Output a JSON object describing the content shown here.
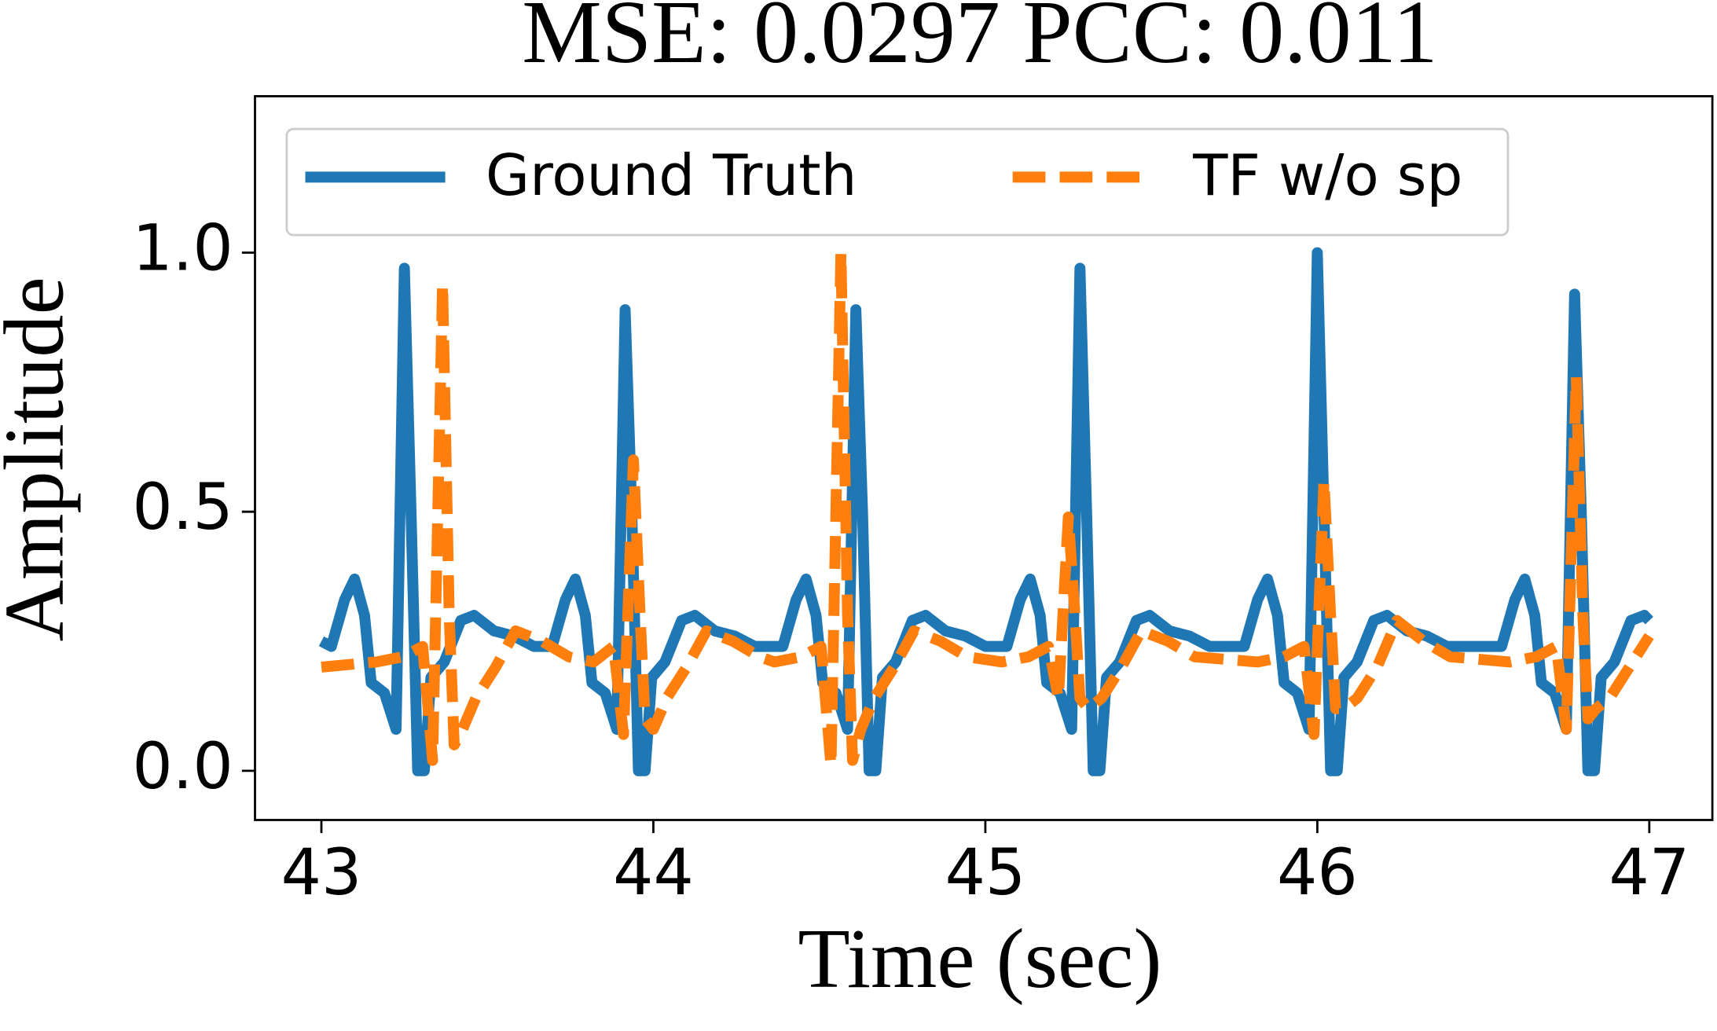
{
  "chart_data": {
    "type": "line",
    "title": "MSE: 0.0297  PCC: 0.011",
    "xlabel": "Time (sec)",
    "ylabel": "Amplitude",
    "xlim": [
      42.8,
      47.19
    ],
    "ylim": [
      -0.095,
      1.302
    ],
    "xticks": [
      43,
      44,
      45,
      46,
      47
    ],
    "yticks": [
      {
        "value": 0,
        "label": "0.0"
      },
      {
        "value": 0.5,
        "label": "0.5"
      },
      {
        "value": 1,
        "label": "1.0"
      }
    ],
    "legend": "top",
    "series": [
      {
        "name": "Ground Truth",
        "color": "#1f77b4",
        "style": "solid",
        "x": [
          43.0,
          43.03,
          43.07,
          43.1,
          43.13,
          43.15,
          43.19,
          43.225,
          43.25,
          43.27,
          43.29,
          43.31,
          43.33,
          43.37,
          43.42,
          43.46,
          43.52,
          43.58,
          43.64,
          43.695,
          43.735,
          43.765,
          43.795,
          43.815,
          43.855,
          43.89,
          43.915,
          43.935,
          43.955,
          43.975,
          43.995,
          44.035,
          44.085,
          44.125,
          44.185,
          44.245,
          44.305,
          44.39,
          44.43,
          44.46,
          44.49,
          44.51,
          44.55,
          44.585,
          44.61,
          44.63,
          44.65,
          44.67,
          44.69,
          44.73,
          44.78,
          44.82,
          44.88,
          44.94,
          45.0,
          45.065,
          45.105,
          45.135,
          45.165,
          45.185,
          45.225,
          45.26,
          45.285,
          45.305,
          45.325,
          45.345,
          45.365,
          45.405,
          45.455,
          45.495,
          45.555,
          45.615,
          45.675,
          45.78,
          45.82,
          45.85,
          45.88,
          45.9,
          45.94,
          45.975,
          46.0,
          46.02,
          46.04,
          46.06,
          46.08,
          46.12,
          46.17,
          46.21,
          46.27,
          46.33,
          46.39,
          46.555,
          46.595,
          46.625,
          46.655,
          46.675,
          46.715,
          46.75,
          46.775,
          46.795,
          46.815,
          46.835,
          46.855,
          46.895,
          46.945,
          46.985,
          47.0
        ],
        "values": [
          0.25,
          0.24,
          0.33,
          0.37,
          0.3,
          0.17,
          0.15,
          0.08,
          0.97,
          0.5,
          0,
          0,
          0.18,
          0.21,
          0.29,
          0.3,
          0.27,
          0.26,
          0.24,
          0.24,
          0.33,
          0.37,
          0.3,
          0.17,
          0.15,
          0.08,
          0.89,
          0.5,
          0,
          0,
          0.18,
          0.21,
          0.29,
          0.3,
          0.27,
          0.26,
          0.24,
          0.24,
          0.33,
          0.37,
          0.3,
          0.17,
          0.15,
          0.08,
          0.89,
          0.5,
          0,
          0,
          0.18,
          0.21,
          0.29,
          0.3,
          0.27,
          0.26,
          0.24,
          0.24,
          0.33,
          0.37,
          0.3,
          0.17,
          0.15,
          0.08,
          0.97,
          0.5,
          0,
          0,
          0.18,
          0.21,
          0.29,
          0.3,
          0.27,
          0.26,
          0.24,
          0.24,
          0.33,
          0.37,
          0.3,
          0.17,
          0.15,
          0.08,
          1.0,
          0.5,
          0,
          0,
          0.18,
          0.21,
          0.29,
          0.3,
          0.27,
          0.26,
          0.24,
          0.24,
          0.33,
          0.37,
          0.3,
          0.17,
          0.15,
          0.08,
          0.92,
          0.5,
          0,
          0,
          0.18,
          0.21,
          0.29,
          0.3,
          0.29
        ]
      },
      {
        "name": "TF w/o sp",
        "color": "#ff7f0e",
        "style": "dashed",
        "x": [
          43.0,
          43.165,
          43.245,
          43.305,
          43.335,
          43.365,
          43.385,
          43.4,
          43.425,
          43.465,
          43.525,
          43.585,
          43.665,
          43.745,
          43.82,
          43.88,
          43.91,
          43.94,
          43.96,
          43.975,
          44.0,
          44.04,
          44.1,
          44.16,
          44.24,
          44.32,
          44.365,
          44.445,
          44.505,
          44.535,
          44.565,
          44.585,
          44.6,
          44.625,
          44.665,
          44.725,
          44.785,
          44.865,
          44.945,
          45.05,
          45.13,
          45.19,
          45.22,
          45.25,
          45.27,
          45.285,
          45.31,
          45.35,
          45.41,
          45.47,
          45.55,
          45.63,
          45.82,
          45.9,
          45.96,
          45.99,
          46.02,
          46.04,
          46.055,
          46.08,
          46.12,
          46.18,
          46.24,
          46.32,
          46.4,
          46.58,
          46.66,
          46.72,
          46.75,
          46.78,
          46.8,
          46.815,
          46.84,
          46.88,
          46.94,
          47.0
        ],
        "values": [
          0.2,
          0.21,
          0.22,
          0.24,
          0.02,
          0.94,
          0.3,
          0.05,
          0.08,
          0.14,
          0.2,
          0.27,
          0.25,
          0.22,
          0.21,
          0.24,
          0.07,
          0.6,
          0.3,
          0.1,
          0.08,
          0.14,
          0.2,
          0.27,
          0.25,
          0.22,
          0.21,
          0.22,
          0.24,
          0.01,
          1.0,
          0.3,
          0.02,
          0.08,
          0.14,
          0.2,
          0.27,
          0.25,
          0.22,
          0.21,
          0.22,
          0.24,
          0.14,
          0.49,
          0.3,
          0.14,
          0.12,
          0.14,
          0.2,
          0.27,
          0.25,
          0.22,
          0.21,
          0.22,
          0.24,
          0.07,
          0.56,
          0.3,
          0.12,
          0.12,
          0.14,
          0.2,
          0.29,
          0.25,
          0.22,
          0.21,
          0.22,
          0.24,
          0.08,
          0.76,
          0.3,
          0.1,
          0.12,
          0.14,
          0.2,
          0.26
        ]
      }
    ]
  }
}
